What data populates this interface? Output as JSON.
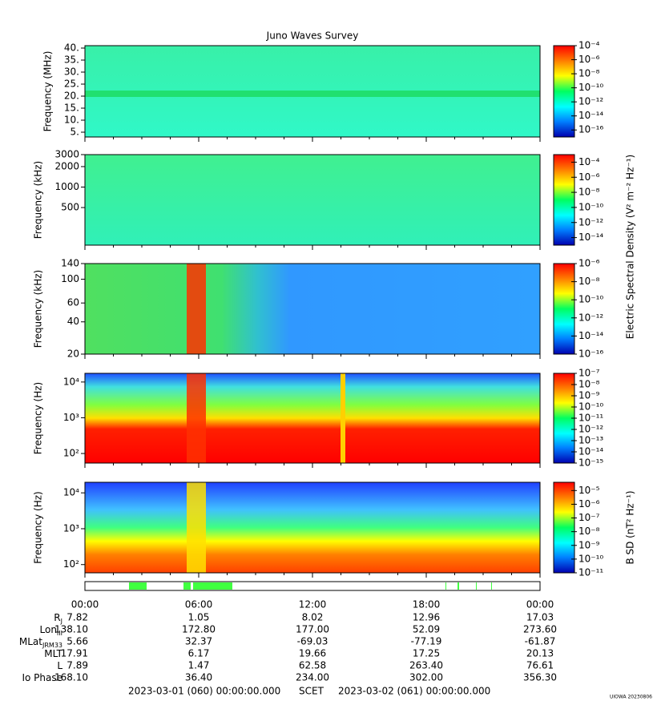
{
  "title": "Juno Waves Survey",
  "chart_data": [
    {
      "type": "spectrogram",
      "ylabel": "Frequency (MHz)",
      "log_y": false,
      "ylim": [
        3,
        41
      ],
      "yticks": [
        {
          "value": 5,
          "label": "5."
        },
        {
          "value": 10,
          "label": "10."
        },
        {
          "value": 15,
          "label": "15."
        },
        {
          "value": 20,
          "label": "20."
        },
        {
          "value": 25,
          "label": "25."
        },
        {
          "value": 30,
          "label": "30."
        },
        {
          "value": 35,
          "label": "35."
        },
        {
          "value": 40,
          "label": "40."
        }
      ],
      "colorbar": {
        "lim": [
          1e-17,
          0.0001
        ],
        "ticks": [
          {
            "value": 0.0001,
            "label": "10⁻⁴"
          },
          {
            "value": 1e-06,
            "label": "10⁻⁶"
          },
          {
            "value": 1e-08,
            "label": "10⁻⁸"
          },
          {
            "value": 1e-10,
            "label": "10⁻¹⁰"
          },
          {
            "value": 1e-12,
            "label": "10⁻¹²"
          },
          {
            "value": 1e-14,
            "label": "10⁻¹⁴"
          },
          {
            "value": 1e-16,
            "label": "10⁻¹⁶"
          }
        ]
      }
    },
    {
      "type": "spectrogram",
      "ylabel": "Frequency (kHz)",
      "log_y": true,
      "ylim": [
        140,
        3000
      ],
      "yticks": [
        500,
        1000,
        2000,
        3000
      ],
      "colorbar": {
        "label": "Electric Spectral Density (V² m⁻² Hz⁻¹)",
        "lim": [
          1e-15,
          0.001
        ],
        "ticks": [
          {
            "value": 0.0001,
            "label": "10⁻⁴"
          },
          {
            "value": 1e-06,
            "label": "10⁻⁶"
          },
          {
            "value": 1e-08,
            "label": "10⁻⁸"
          },
          {
            "value": 1e-10,
            "label": "10⁻¹⁰"
          },
          {
            "value": 1e-12,
            "label": "10⁻¹²"
          },
          {
            "value": 1e-14,
            "label": "10⁻¹⁴"
          }
        ]
      }
    },
    {
      "type": "spectrogram",
      "ylabel": "Frequency (kHz)",
      "log_y": true,
      "ylim": [
        20,
        140
      ],
      "yticks": [
        20,
        40,
        60,
        100,
        140
      ],
      "colorbar": {
        "lim": [
          1e-16,
          1e-06
        ],
        "ticks": [
          {
            "value": 1e-06,
            "label": "10⁻⁶"
          },
          {
            "value": 1e-08,
            "label": "10⁻⁸"
          },
          {
            "value": 1e-10,
            "label": "10⁻¹⁰"
          },
          {
            "value": 1e-12,
            "label": "10⁻¹²"
          },
          {
            "value": 1e-14,
            "label": "10⁻¹⁴"
          },
          {
            "value": 1e-16,
            "label": "10⁻¹⁶"
          }
        ]
      }
    },
    {
      "type": "spectrogram",
      "ylabel": "Frequency (Hz)",
      "log_y": true,
      "ylim": [
        54,
        17500
      ],
      "yticks": [
        {
          "value": 100,
          "label": "10²"
        },
        {
          "value": 1000,
          "label": "10³"
        },
        {
          "value": 10000,
          "label": "10⁴"
        }
      ],
      "colorbar": {
        "lim": [
          1e-15,
          1e-07
        ],
        "ticks": [
          {
            "value": 1e-07,
            "label": "10⁻⁷"
          },
          {
            "value": 1e-08,
            "label": "10⁻⁸"
          },
          {
            "value": 1e-09,
            "label": "10⁻⁹"
          },
          {
            "value": 1e-10,
            "label": "10⁻¹⁰"
          },
          {
            "value": 1e-11,
            "label": "10⁻¹¹"
          },
          {
            "value": 1e-12,
            "label": "10⁻¹²"
          },
          {
            "value": 1e-13,
            "label": "10⁻¹³"
          },
          {
            "value": 1e-14,
            "label": "10⁻¹⁴"
          },
          {
            "value": 1e-15,
            "label": "10⁻¹⁵"
          }
        ]
      }
    },
    {
      "type": "spectrogram",
      "ylabel": "Frequency (Hz)",
      "log_y": true,
      "ylim": [
        59,
        19700
      ],
      "yticks": [
        {
          "value": 100,
          "label": "10²"
        },
        {
          "value": 1000,
          "label": "10³"
        },
        {
          "value": 10000,
          "label": "10⁴"
        }
      ],
      "colorbar": {
        "label": "B SD (nT² Hz⁻¹)",
        "lim": [
          1e-11,
          4e-05
        ],
        "ticks": [
          {
            "value": 1e-05,
            "label": "10⁻⁵"
          },
          {
            "value": 1e-06,
            "label": "10⁻⁶"
          },
          {
            "value": 1e-07,
            "label": "10⁻⁷"
          },
          {
            "value": 1e-08,
            "label": "10⁻⁸"
          },
          {
            "value": 1e-09,
            "label": "10⁻⁹"
          },
          {
            "value": 1e-10,
            "label": "10⁻¹⁰"
          },
          {
            "value": 1e-11,
            "label": "10⁻¹¹"
          }
        ]
      }
    }
  ],
  "time_ticks": [
    "00:00",
    "06:00",
    "12:00",
    "18:00",
    "00:00"
  ],
  "ephemeris": [
    {
      "label": "R",
      "sub": "J",
      "values": [
        "7.82",
        "1.05",
        "8.02",
        "12.96",
        "17.03"
      ]
    },
    {
      "label": "Lon",
      "sub": "III",
      "values": [
        "138.10",
        "172.80",
        "177.00",
        "52.09",
        "273.60"
      ]
    },
    {
      "label": "MLat",
      "sub": "JRM33",
      "values": [
        "5.66",
        "32.37",
        "-69.03",
        "-77.19",
        "-61.87"
      ]
    },
    {
      "label": "MLT",
      "values": [
        "17.91",
        "6.17",
        "19.66",
        "17.25",
        "20.13"
      ]
    },
    {
      "label": "L",
      "values": [
        "7.89",
        "1.47",
        "62.58",
        "263.40",
        "76.61"
      ]
    },
    {
      "label": "Io Phase",
      "values": [
        "168.10",
        "36.40",
        "234.00",
        "302.00",
        "356.30"
      ]
    }
  ],
  "footer": {
    "start": "2023-03-01 (060) 00:00:00.000",
    "frame": "SCET",
    "end": "2023-03-02 (061) 00:00:00.000",
    "credit": "UIOWA 20230806"
  }
}
